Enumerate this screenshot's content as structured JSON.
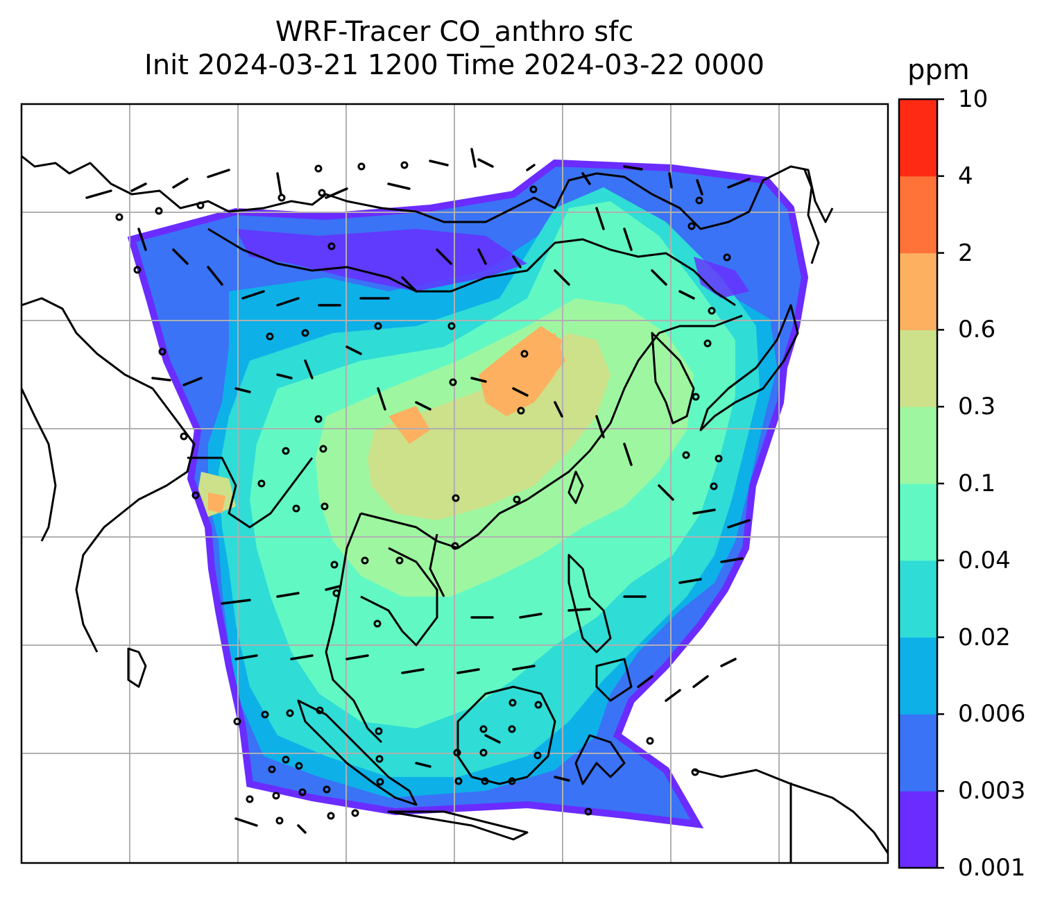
{
  "title": {
    "line1": "WRF-Tracer CO_anthro sfc",
    "line2": "Init 2024-03-21 1200 Time 2024-03-22 0000"
  },
  "colorbar": {
    "unit": "ppm",
    "tick_labels": [
      "0.001",
      "0.003",
      "0.006",
      "0.02",
      "0.04",
      "0.1",
      "0.3",
      "0.6",
      "2",
      "4",
      "10"
    ],
    "colors": [
      "#6a2cff",
      "#3a73f5",
      "#0db1e8",
      "#2fdcd6",
      "#62f8c4",
      "#9ef7a0",
      "#cde08a",
      "#fcb060",
      "#ff7238",
      "#ff2a14"
    ]
  },
  "map": {
    "features": [
      "coastlines",
      "country-borders",
      "gridlines",
      "wind-barbs",
      "co-concentration-field"
    ],
    "gridline_color": "#b0b0b0",
    "coast_color": "#000000"
  }
}
